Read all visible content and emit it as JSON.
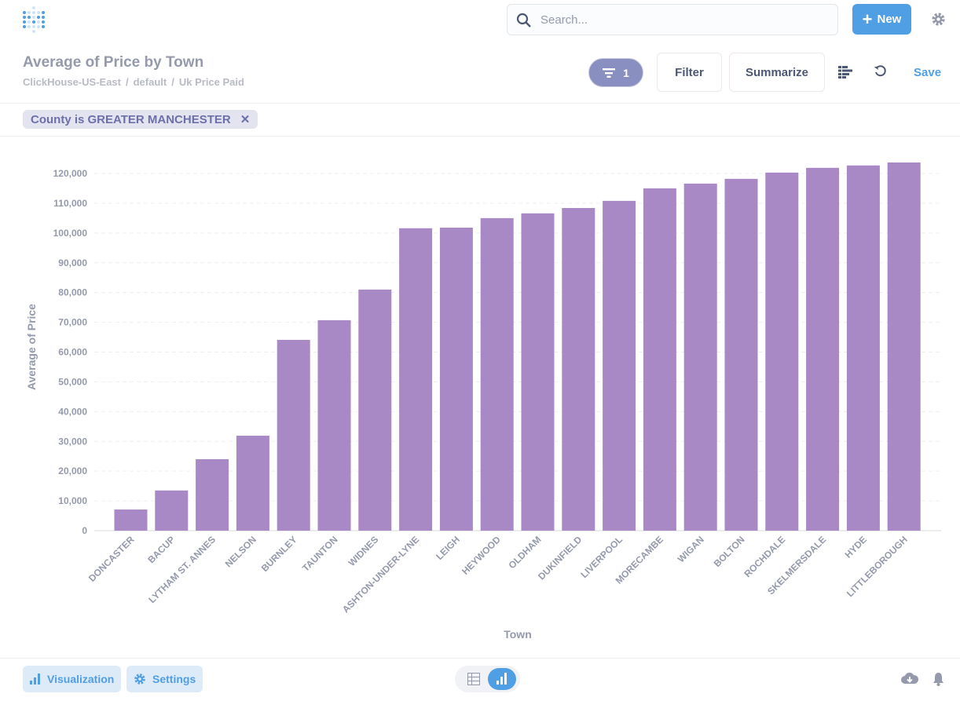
{
  "header": {
    "search_placeholder": "Search...",
    "new_label": "New"
  },
  "question": {
    "title": "Average of Price by Town",
    "breadcrumbs": [
      "ClickHouse-US-East",
      "default",
      "Uk Price Paid"
    ],
    "filter_count": "1",
    "filter_label": "Filter",
    "summarize_label": "Summarize",
    "save_label": "Save"
  },
  "filters": [
    {
      "label": "County is GREATER MANCHESTER"
    }
  ],
  "footer": {
    "visualization_label": "Visualization",
    "settings_label": "Settings"
  },
  "colors": {
    "bar": "#a989c5",
    "accent": "#509ee3",
    "filter_pill": "#8a8fc1"
  },
  "chart_data": {
    "type": "bar",
    "xlabel": "Town",
    "ylabel": "Average of Price",
    "ylim": [
      0,
      125000
    ],
    "yticks": [
      0,
      10000,
      20000,
      30000,
      40000,
      50000,
      60000,
      70000,
      80000,
      90000,
      100000,
      110000,
      120000
    ],
    "grid": true,
    "categories": [
      "DONCASTER",
      "BACUP",
      "LYTHAM ST. ANNES",
      "NELSON",
      "BURNLEY",
      "TAUNTON",
      "WIDNES",
      "ASHTON-UNDER-LYNE",
      "LEIGH",
      "HEYWOOD",
      "OLDHAM",
      "DUKINFIELD",
      "LIVERPOOL",
      "MORECAMBE",
      "WIGAN",
      "BOLTON",
      "ROCHDALE",
      "SKELMERSDALE",
      "HYDE",
      "LITTLEBOROUGH"
    ],
    "values": [
      7100,
      13500,
      24000,
      31900,
      64100,
      70700,
      81000,
      101600,
      101800,
      105000,
      106600,
      108400,
      110800,
      115000,
      116600,
      118200,
      120300,
      121900,
      122700,
      123700
    ]
  }
}
